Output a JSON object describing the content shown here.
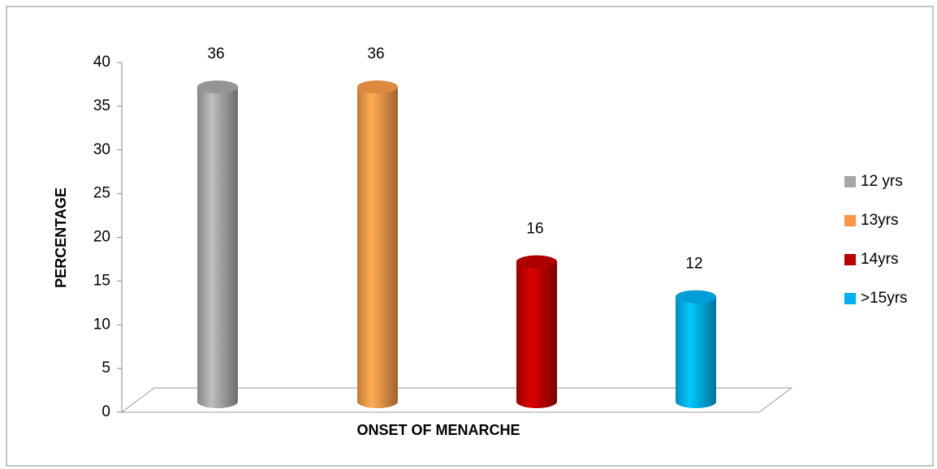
{
  "chart_data": {
    "type": "bar3d",
    "x_label": "ONSET OF MENARCHE",
    "y_label": "PERCENTAGE",
    "series": [
      {
        "name": "12 yrs",
        "color": "#a6a6a6",
        "values": [
          36
        ]
      },
      {
        "name": "13yrs",
        "color": "#f79646",
        "values": [
          36
        ]
      },
      {
        "name": "14yrs",
        "color": "#c00000",
        "values": [
          16
        ]
      },
      {
        "name": ">15yrs",
        "color": "#00b0f0",
        "values": [
          12
        ]
      }
    ],
    "ylim": [
      0,
      40
    ],
    "yticks": [
      0,
      5,
      10,
      15,
      20,
      25,
      30,
      35,
      40
    ],
    "legend": "right"
  }
}
